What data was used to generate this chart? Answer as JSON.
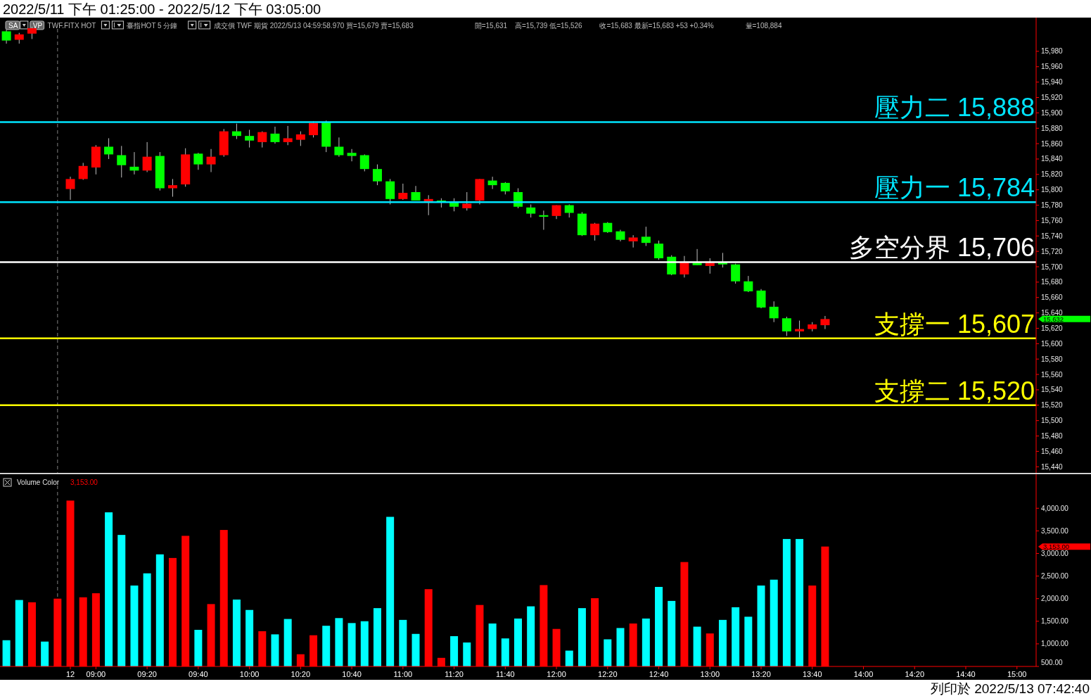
{
  "chart_data": [
    {
      "type": "candlestick",
      "title": "2022/5/11 下午 01:25:00 - 2022/5/12 下午 03:05:00",
      "annotations": [
        "SA",
        "VP",
        "TWF.FITX HOT",
        "臺指HOT  5 分鐘",
        "成交價  TWF  期貨  2022/5/13  04:59:58.970  買=15,679  賣=15,683",
        "開=15,631",
        "高=15,739  低=15,526",
        "收=15,683  最新=15,683  +53  +0.34%",
        "量=108,884",
        "15,632"
      ],
      "categories": [
        null,
        null,
        null,
        null,
        null,
        null,
        null,
        null,
        null,
        null,
        null,
        null,
        null,
        null,
        null,
        null,
        null,
        null,
        null,
        null,
        null,
        null,
        null,
        null,
        null,
        null,
        null,
        null,
        null,
        null,
        null,
        null,
        null,
        null,
        null,
        null,
        null,
        null,
        null,
        null,
        null,
        null,
        null,
        null,
        null,
        null,
        null,
        null,
        null,
        null,
        null,
        null,
        null,
        null,
        null,
        null,
        null,
        null,
        null,
        null,
        null,
        null,
        null,
        null,
        null,
        null,
        null,
        null,
        null,
        null,
        null,
        null,
        null,
        null,
        null,
        null,
        null,
        null,
        null,
        null,
        null
      ],
      "ohlc": [
        [
          16006,
          16008,
          15990,
          15994
        ],
        [
          15995,
          16004,
          15990,
          16002
        ],
        [
          16003,
          16012,
          15996,
          16010
        ],
        null,
        null,
        [
          15801,
          15817,
          15787,
          15814
        ],
        [
          15814,
          15835,
          15813,
          15831
        ],
        [
          15829,
          15858,
          15820,
          15856
        ],
        [
          15856,
          15867,
          15840,
          15846
        ],
        [
          15845,
          15857,
          15816,
          15832
        ],
        [
          15830,
          15849,
          15820,
          15825
        ],
        [
          15825,
          15862,
          15823,
          15843
        ],
        [
          15844,
          15849,
          15799,
          15802
        ],
        [
          15802,
          15814,
          15791,
          15806
        ],
        [
          15807,
          15854,
          15804,
          15846
        ],
        [
          15847,
          15848,
          15826,
          15833
        ],
        [
          15833,
          15853,
          15823,
          15843
        ],
        [
          15845,
          15879,
          15843,
          15876
        ],
        [
          15876,
          15886,
          15866,
          15870
        ],
        [
          15870,
          15878,
          15855,
          15864
        ],
        [
          15862,
          15876,
          15855,
          15875
        ],
        [
          15873,
          15882,
          15860,
          15862
        ],
        [
          15862,
          15883,
          15858,
          15867
        ],
        [
          15865,
          15876,
          15857,
          15872
        ],
        [
          15871,
          15889,
          15868,
          15887
        ],
        [
          15888,
          15890,
          15849,
          15856
        ],
        [
          15856,
          15868,
          15843,
          15845
        ],
        [
          15848,
          15853,
          15837,
          15844
        ],
        [
          15845,
          15846,
          15824,
          15827
        ],
        [
          15827,
          15833,
          15806,
          15811
        ],
        [
          15811,
          15814,
          15781,
          15788
        ],
        [
          15788,
          15808,
          15787,
          15796
        ],
        [
          15797,
          15805,
          15786,
          15786
        ],
        [
          15785,
          15793,
          15767,
          15788
        ],
        [
          15786,
          15789,
          15777,
          15785
        ],
        [
          15784,
          15789,
          15772,
          15778
        ],
        [
          15776,
          15797,
          15773,
          15782
        ],
        [
          15786,
          15814,
          15781,
          15814
        ],
        [
          15812,
          15817,
          15801,
          15806
        ],
        [
          15809,
          15810,
          15794,
          15798
        ],
        [
          15797,
          15802,
          15776,
          15778
        ],
        [
          15777,
          15781,
          15764,
          15769
        ],
        [
          15767,
          15773,
          15748,
          15765
        ],
        [
          15766,
          15780,
          15762,
          15780
        ],
        [
          15780,
          15781,
          15764,
          15770
        ],
        [
          15769,
          15771,
          15740,
          15741
        ],
        [
          15741,
          15757,
          15734,
          15756
        ],
        [
          15757,
          15758,
          15744,
          15745
        ],
        [
          15746,
          15748,
          15733,
          15735
        ],
        [
          15733,
          15741,
          15725,
          15738
        ],
        [
          15739,
          15752,
          15727,
          15731
        ],
        [
          15730,
          15734,
          15709,
          15711
        ],
        [
          15713,
          15715,
          15689,
          15690
        ],
        [
          15690,
          15714,
          15686,
          15706
        ],
        [
          15706,
          15723,
          15702,
          15702
        ],
        [
          15701,
          15711,
          15691,
          15705
        ],
        [
          15706,
          15718,
          15699,
          15703
        ],
        [
          15703,
          15704,
          15678,
          15681
        ],
        [
          15681,
          15688,
          15667,
          15668
        ],
        [
          15669,
          15671,
          15646,
          15647
        ],
        [
          15648,
          15655,
          15628,
          15633
        ],
        [
          15633,
          15635,
          15610,
          15616
        ],
        [
          15616,
          15630,
          15608,
          15619
        ],
        [
          15619,
          15628,
          15616,
          15625
        ],
        [
          15624,
          15636,
          15619,
          15632
        ],
        null,
        null,
        null,
        null,
        null,
        null,
        null,
        null,
        null,
        null,
        null,
        null,
        null,
        null,
        null,
        null
      ],
      "colors": [
        "#00ff00",
        "#ff0000",
        "#ff0000",
        null,
        null,
        "#ff0000",
        "#ff0000",
        "#ff0000",
        "#00ff00",
        "#00ff00",
        "#00ff00",
        "#ff0000",
        "#00ff00",
        "#ff0000",
        "#ff0000",
        "#00ff00",
        "#ff0000",
        "#ff0000",
        "#00ff00",
        "#00ff00",
        "#ff0000",
        "#00ff00",
        "#ff0000",
        "#ff0000",
        "#ff0000",
        "#00ff00",
        "#00ff00",
        "#00ff00",
        "#00ff00",
        "#00ff00",
        "#00ff00",
        "#ff0000",
        "#00ff00",
        "#ff0000",
        "#00ff00",
        "#00ff00",
        "#ff0000",
        "#ff0000",
        "#00ff00",
        "#00ff00",
        "#00ff00",
        "#00ff00",
        "#00ff00",
        "#ff0000",
        "#00ff00",
        "#00ff00",
        "#ff0000",
        "#00ff00",
        "#00ff00",
        "#ff0000",
        "#00ff00",
        "#00ff00",
        "#00ff00",
        "#ff0000",
        "#00ff00",
        "#ff0000",
        "#00ff00",
        "#00ff00",
        "#00ff00",
        "#00ff00",
        "#00ff00",
        "#00ff00",
        "#ff0000",
        "#ff0000",
        "#ff0000",
        null,
        null,
        null,
        null,
        null,
        null,
        null,
        null,
        null,
        null,
        null,
        null,
        null,
        null,
        null,
        null
      ],
      "ylim": [
        15432,
        16022
      ],
      "yticks": [
        {
          "value": 15440,
          "label": "15,440"
        },
        {
          "value": 15460,
          "label": "15,460"
        },
        {
          "value": 15480,
          "label": "15,480"
        },
        {
          "value": 15500,
          "label": "15,500"
        },
        {
          "value": 15520,
          "label": "15,520"
        },
        {
          "value": 15540,
          "label": "15,540"
        },
        {
          "value": 15560,
          "label": "15,560"
        },
        {
          "value": 15580,
          "label": "15,580"
        },
        {
          "value": 15600,
          "label": "15,600"
        },
        {
          "value": 15620,
          "label": "15,620"
        },
        {
          "value": 15640,
          "label": "15,640"
        },
        {
          "value": 15660,
          "label": "15,660"
        },
        {
          "value": 15680,
          "label": "15,680"
        },
        {
          "value": 15700,
          "label": "15,700"
        },
        {
          "value": 15720,
          "label": "15,720"
        },
        {
          "value": 15740,
          "label": "15,740"
        },
        {
          "value": 15760,
          "label": "15,760"
        },
        {
          "value": 15780,
          "label": "15,780"
        },
        {
          "value": 15800,
          "label": "15,800"
        },
        {
          "value": 15820,
          "label": "15,820"
        },
        {
          "value": 15840,
          "label": "15,840"
        },
        {
          "value": 15860,
          "label": "15,860"
        },
        {
          "value": 15880,
          "label": "15,880"
        },
        {
          "value": 15900,
          "label": "15,900"
        },
        {
          "value": 15920,
          "label": "15,920"
        },
        {
          "value": 15940,
          "label": "15,940"
        },
        {
          "value": 15960,
          "label": "15,960"
        },
        {
          "value": 15980,
          "label": "15,980"
        }
      ],
      "tick_labels": "y",
      "ref_lines": [
        {
          "axis": "y",
          "value": 15888,
          "label": "壓力二 15,888",
          "color": "#00e5ff"
        },
        {
          "axis": "y",
          "value": 15784,
          "label": "壓力一 15,784",
          "color": "#00e5ff"
        },
        {
          "axis": "y",
          "value": 15706,
          "label": "多空分界 15,706",
          "color": "#ffffff"
        },
        {
          "axis": "y",
          "value": 15607,
          "label": "支撐一 15,607",
          "color": "#ffff00"
        },
        {
          "axis": "y",
          "value": 15520,
          "label": "支撐二 15,520",
          "color": "#ffff00"
        }
      ]
    },
    {
      "type": "bar",
      "title": "Volume Color",
      "annotations": [
        "列印於 2022/5/13 07:42:40",
        "3,153.00"
      ],
      "categories": [
        null,
        null,
        null,
        null,
        null,
        "12",
        null,
        "09:00",
        null,
        null,
        null,
        "09:20",
        null,
        null,
        null,
        "09:40",
        null,
        null,
        null,
        "10:00",
        null,
        null,
        null,
        "10:20",
        null,
        null,
        null,
        "10:40",
        null,
        null,
        null,
        "11:00",
        null,
        null,
        null,
        "11:20",
        null,
        null,
        null,
        "11:40",
        null,
        null,
        null,
        "12:00",
        null,
        null,
        null,
        "12:20",
        null,
        null,
        null,
        "12:40",
        null,
        null,
        null,
        "13:00",
        null,
        null,
        null,
        "13:20",
        null,
        null,
        null,
        "13:40",
        null,
        null,
        null,
        "14:00",
        null,
        null,
        null,
        "14:20",
        null,
        null,
        null,
        "14:40",
        null,
        null,
        null,
        "15:00",
        null
      ],
      "values": [
        1080,
        1970,
        1920,
        1050,
        2000,
        4170,
        2030,
        2120,
        3910,
        3410,
        2290,
        2560,
        2980,
        2900,
        3390,
        1310,
        1880,
        3520,
        1980,
        1750,
        1280,
        1210,
        1550,
        770,
        1190,
        1400,
        1570,
        1460,
        1500,
        1790,
        3810,
        1530,
        1220,
        2210,
        690,
        1170,
        1030,
        1860,
        1450,
        1120,
        1560,
        1830,
        2300,
        1330,
        850,
        1790,
        2010,
        1100,
        1350,
        1450,
        1560,
        2260,
        1950,
        2810,
        1380,
        1230,
        1530,
        1810,
        1600,
        2290,
        2420,
        3320,
        3320,
        2290,
        3153,
        null,
        null,
        null,
        null,
        null,
        null,
        null,
        null,
        null,
        null,
        null,
        null,
        null,
        null,
        null,
        null
      ],
      "colors": [
        "#00ffff",
        "#00ffff",
        "#ff0000",
        "#00ffff",
        "#ff0000",
        "#ff0000",
        "#ff0000",
        "#ff0000",
        "#00ffff",
        "#00ffff",
        "#00ffff",
        "#00ffff",
        "#00ffff",
        "#ff0000",
        "#ff0000",
        "#00ffff",
        "#ff0000",
        "#ff0000",
        "#00ffff",
        "#00ffff",
        "#ff0000",
        "#00ffff",
        "#00ffff",
        "#ff0000",
        "#ff0000",
        "#00ffff",
        "#00ffff",
        "#00ffff",
        "#00ffff",
        "#00ffff",
        "#00ffff",
        "#00ffff",
        "#00ffff",
        "#ff0000",
        "#ff0000",
        "#00ffff",
        "#00ffff",
        "#ff0000",
        "#00ffff",
        "#00ffff",
        "#00ffff",
        "#00ffff",
        "#ff0000",
        "#ff0000",
        "#00ffff",
        "#00ffff",
        "#ff0000",
        "#00ffff",
        "#00ffff",
        "#ff0000",
        "#00ffff",
        "#00ffff",
        "#00ffff",
        "#ff0000",
        "#00ffff",
        "#ff0000",
        "#00ffff",
        "#00ffff",
        "#00ffff",
        "#00ffff",
        "#00ffff",
        "#00ffff",
        "#00ffff",
        "#ff0000",
        "#ff0000",
        null,
        null,
        null,
        null,
        null,
        null,
        null,
        null,
        null,
        null,
        null,
        null,
        null,
        null,
        null,
        null
      ],
      "ylim": [
        500,
        4720
      ],
      "yticks": [
        {
          "value": 500,
          "label": "500.00"
        },
        {
          "value": 1000,
          "label": "1,000.00"
        },
        {
          "value": 1500,
          "label": "1,500.00"
        },
        {
          "value": 2000,
          "label": "2,000.00"
        },
        {
          "value": 2500,
          "label": "2,500.00"
        },
        {
          "value": 3000,
          "label": "3,000.00"
        },
        {
          "value": 3500,
          "label": "3,500.00"
        },
        {
          "value": 4000,
          "label": "4,000.00"
        }
      ]
    }
  ]
}
